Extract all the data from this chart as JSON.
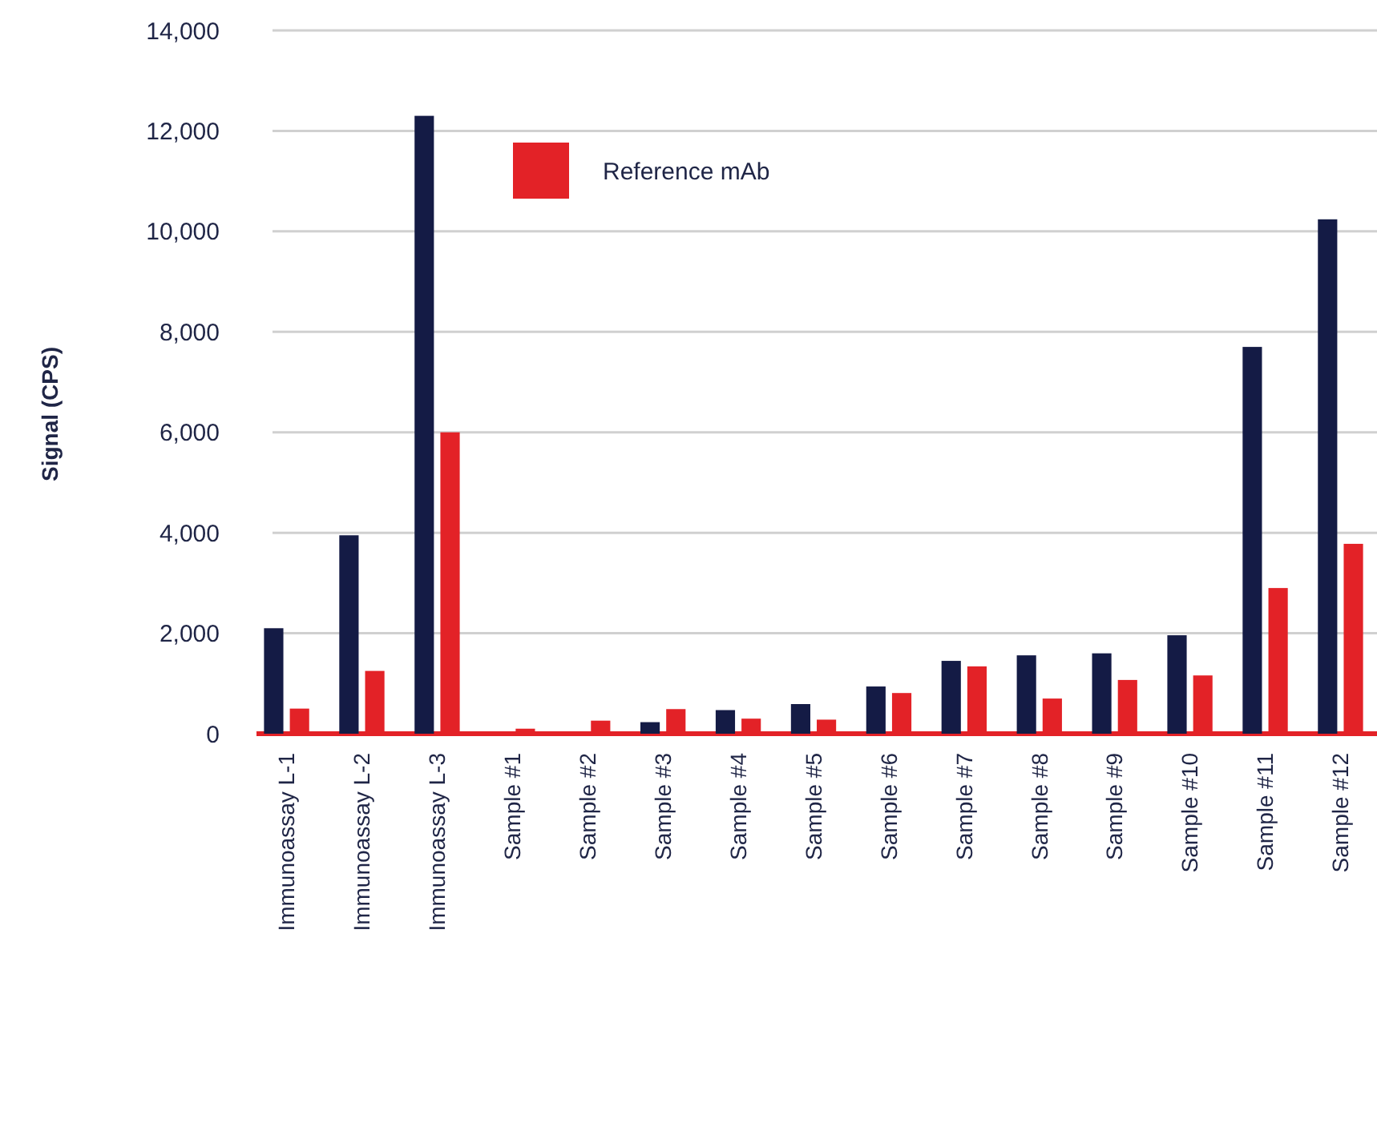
{
  "chart_data": {
    "type": "bar",
    "ylabel": "Signal (CPS)",
    "categories": [
      "Immunoassay L-1",
      "Immunoassay L-2",
      "Immunoassay L-3",
      "Sample #1",
      "Sample #2",
      "Sample #3",
      "Sample #4",
      "Sample #5",
      "Sample #6",
      "Sample #7",
      "Sample #8",
      "Sample #9",
      "Sample #10",
      "Sample #11",
      "Sample #12"
    ],
    "series": [
      {
        "color": "#141b45",
        "values": [
          2100,
          3950,
          12300,
          null,
          null,
          230,
          470,
          590,
          940,
          1450,
          1560,
          1600,
          1960,
          7700,
          10240
        ]
      },
      {
        "name": "Reference mAb",
        "color": "#e32227",
        "values": [
          500,
          1250,
          6000,
          100,
          260,
          490,
          300,
          280,
          810,
          1340,
          700,
          1070,
          1160,
          2900,
          3780
        ]
      }
    ],
    "ylim": [
      0,
      14000
    ],
    "yticks": [
      {
        "value": 0,
        "label": "0"
      },
      {
        "value": 2000,
        "label": "2,000"
      },
      {
        "value": 4000,
        "label": "4,000"
      },
      {
        "value": 6000,
        "label": "6,000"
      },
      {
        "value": 8000,
        "label": "8,000"
      },
      {
        "value": 10000,
        "label": "10,000"
      },
      {
        "value": 12000,
        "label": "12,000"
      },
      {
        "value": 14000,
        "label": "14,000"
      }
    ],
    "grid": "y",
    "legend": "top"
  }
}
